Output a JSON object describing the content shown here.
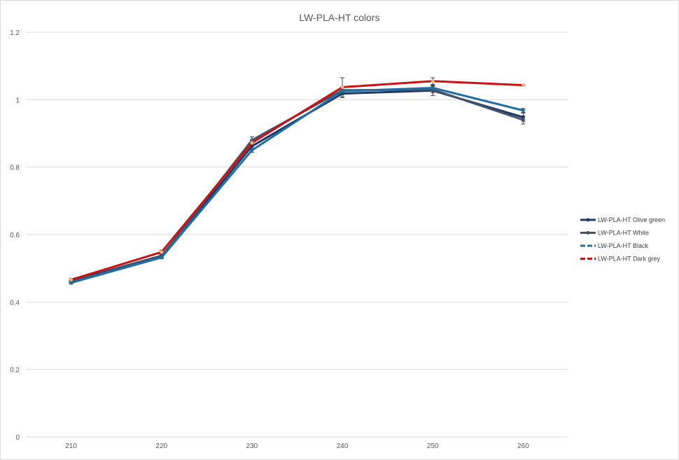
{
  "chart_data": {
    "type": "line",
    "title": "LW-PLA-HT colors",
    "xlabel": "",
    "ylabel": "",
    "categories": [
      "210",
      "220",
      "230",
      "240",
      "250",
      "260"
    ],
    "y_ticks": [
      "0",
      "0.2",
      "0.4",
      "0.6",
      "0.8",
      "1",
      "1.2"
    ],
    "ylim": [
      0,
      1.2
    ],
    "grid": true,
    "legend_position": "right",
    "series": [
      {
        "name": "LW-PLA-HT Olive green",
        "color": "#1f3864",
        "dash": "solid",
        "values": [
          0.462,
          0.537,
          0.862,
          1.018,
          1.027,
          0.948
        ],
        "errors": [
          0.004,
          0.005,
          0.008,
          0.012,
          0.015,
          0.012
        ]
      },
      {
        "name": "LW-PLA-HT White",
        "color": "#44546a",
        "dash": "solid",
        "values": [
          0.46,
          0.535,
          0.88,
          1.028,
          1.03,
          0.94
        ],
        "errors": [
          0.004,
          0.005,
          0.01,
          0.01,
          0.01,
          0.012
        ]
      },
      {
        "name": "LW-PLA-HT Black",
        "color": "#1f6fa5",
        "dash": "dashed",
        "values": [
          0.457,
          0.532,
          0.85,
          1.025,
          1.035,
          0.968
        ],
        "errors": [
          0.004,
          0.004,
          0.006,
          0.01,
          0.008,
          0.006
        ]
      },
      {
        "name": "LW-PLA-HT Dark grey",
        "color": "#cc1111",
        "dash": "dashed",
        "values": [
          0.466,
          0.548,
          0.872,
          1.037,
          1.055,
          1.043
        ],
        "errors": [
          0.004,
          0.006,
          0.008,
          0.028,
          0.01,
          0.002
        ]
      }
    ]
  }
}
